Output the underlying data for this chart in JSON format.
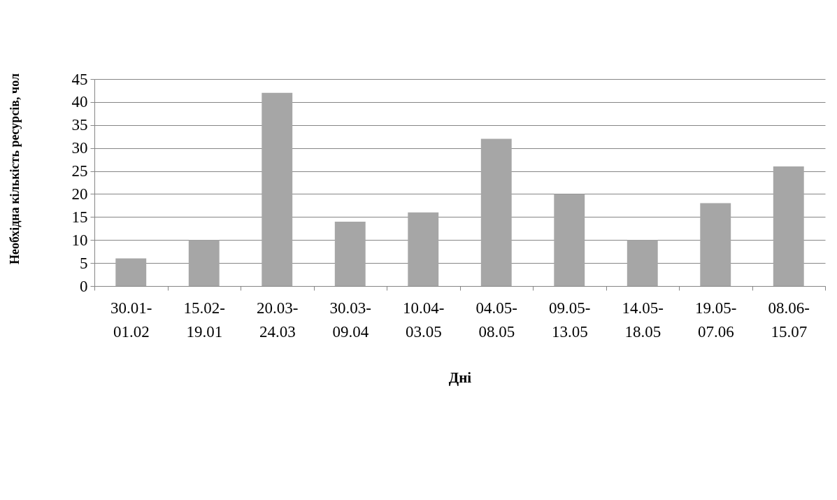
{
  "chart_data": {
    "type": "bar",
    "xlabel": "Дні",
    "ylabel": "Необхідна кількість ресурсів, чол",
    "categories": [
      "30.01-01.02",
      "15.02-19.01",
      "20.03-24.03",
      "30.03-09.04",
      "10.04-03.05",
      "04.05-08.05",
      "09.05-13.05",
      "14.05-18.05",
      "19.05-07.06",
      "08.06-15.07"
    ],
    "values": [
      6,
      10,
      42,
      14,
      16,
      32,
      20,
      10,
      18,
      26
    ],
    "color": "#a6a6a6",
    "ylim": [
      0,
      45
    ],
    "yticks": [
      0,
      5,
      10,
      15,
      20,
      25,
      30,
      35,
      40,
      45
    ],
    "grid": "y"
  }
}
